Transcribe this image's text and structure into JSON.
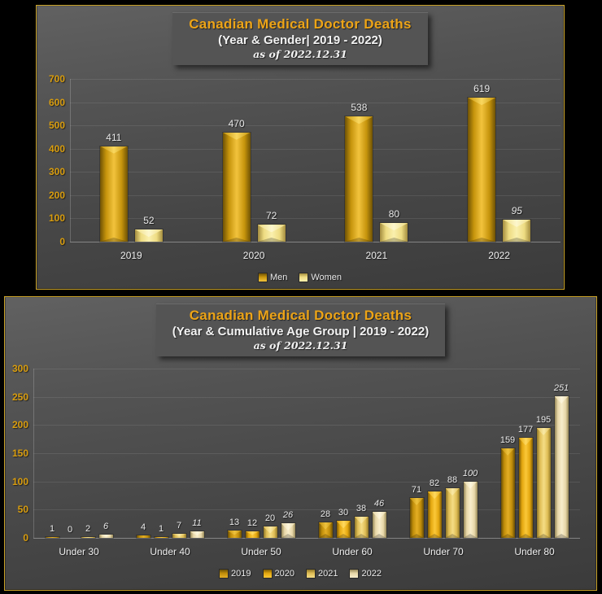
{
  "theme": {
    "background": "#000000",
    "panel_border": "#c9a227",
    "title_color": "#eda417",
    "subtitle_color": "#f2f2f2",
    "tick_color": "#d99d0e",
    "label_color": "#e9e9e9"
  },
  "chart_data": [
    {
      "type": "bar",
      "title": "Canadian Medical Doctor Deaths",
      "subtitle": "(Year & Gender| 2019 - 2022)",
      "annotation": "as of 2022.12.31",
      "categories": [
        "2019",
        "2020",
        "2021",
        "2022"
      ],
      "series": [
        {
          "name": "Men",
          "values": [
            411,
            470,
            538,
            619
          ],
          "italic": [
            false,
            false,
            false,
            false
          ],
          "color": {
            "dark": "#6e5205",
            "base": "#c6940c",
            "light": "#f2c33d",
            "cap": "#f9d75e"
          }
        },
        {
          "name": "Women",
          "values": [
            52,
            72,
            80,
            95
          ],
          "italic": [
            false,
            false,
            false,
            true
          ],
          "color": {
            "dark": "#a38c3f",
            "base": "#eedc82",
            "light": "#faf0ae",
            "cap": "#fdf7cd"
          }
        }
      ],
      "ylim": [
        0,
        700
      ],
      "ytick_step": 100,
      "grid": true,
      "legend_position": "bottom"
    },
    {
      "type": "bar",
      "title": "Canadian Medical Doctor Deaths",
      "subtitle": "(Year & Cumulative Age Group | 2019 - 2022)",
      "annotation": "as of 2022.12.31",
      "categories": [
        "Under 30",
        "Under 40",
        "Under 50",
        "Under 60",
        "Under 70",
        "Under 80"
      ],
      "series": [
        {
          "name": "2019",
          "values": [
            1,
            4,
            13,
            28,
            71,
            159
          ],
          "italic": [
            false,
            false,
            false,
            false,
            false,
            false
          ],
          "color": {
            "dark": "#6a4f05",
            "base": "#bf8d0a",
            "light": "#e4ae24",
            "cap": "#eec23e"
          }
        },
        {
          "name": "2020",
          "values": [
            0,
            1,
            12,
            30,
            82,
            177
          ],
          "italic": [
            false,
            false,
            false,
            false,
            false,
            false
          ],
          "color": {
            "dark": "#7c5a05",
            "base": "#e3a70f",
            "light": "#fbc838",
            "cap": "#ffd95e"
          }
        },
        {
          "name": "2021",
          "values": [
            2,
            7,
            20,
            38,
            88,
            195
          ],
          "italic": [
            false,
            false,
            false,
            false,
            false,
            false
          ],
          "color": {
            "dark": "#8f7627",
            "base": "#dfbd55",
            "light": "#f5dd85",
            "cap": "#f9e9a5"
          }
        },
        {
          "name": "2022",
          "values": [
            6,
            11,
            26,
            46,
            100,
            251
          ],
          "italic": [
            true,
            true,
            true,
            true,
            true,
            true
          ],
          "color": {
            "dark": "#968757",
            "base": "#e7d7a8",
            "light": "#f8edcb",
            "cap": "#fdf6dd"
          }
        }
      ],
      "ylim": [
        0,
        300
      ],
      "ytick_step": 50,
      "grid": true,
      "legend_position": "bottom"
    }
  ]
}
